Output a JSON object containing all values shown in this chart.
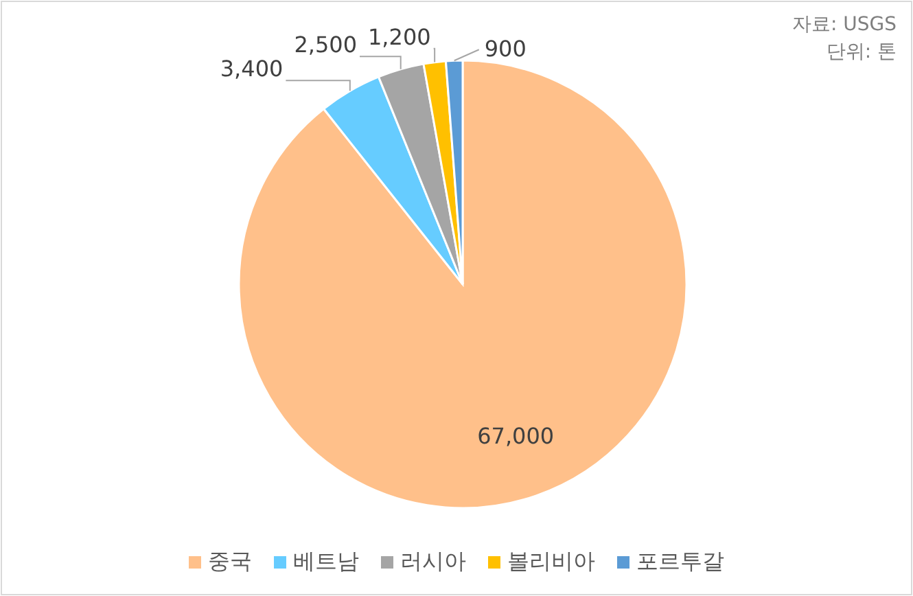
{
  "chart_data": {
    "type": "pie",
    "categories": [
      "중국",
      "베트남",
      "러시아",
      "볼리비아",
      "포르투갈"
    ],
    "values": [
      67000,
      3400,
      2500,
      1200,
      900
    ],
    "colors": [
      "#ffc08a",
      "#66ccff",
      "#a5a5a5",
      "#ffc000",
      "#5b9bd5"
    ],
    "value_labels": [
      "67,000",
      "3,400",
      "2,500",
      "1,200",
      "900"
    ],
    "legend": "bottom",
    "annotations": [
      "자료: USGS",
      "단위: 톤"
    ]
  }
}
